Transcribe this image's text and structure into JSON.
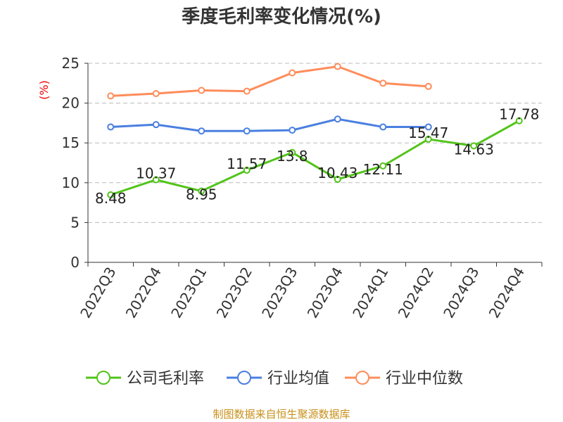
{
  "chart_data": {
    "type": "line",
    "title": "季度毛利率变化情况(%)",
    "ylabel": "(%)",
    "xlabel": "",
    "ylim": [
      0,
      25
    ],
    "yticks": [
      0,
      5,
      10,
      15,
      20,
      25
    ],
    "grid": true,
    "legend_position": "bottom",
    "categories": [
      "2022Q3",
      "2022Q4",
      "2023Q1",
      "2023Q2",
      "2023Q3",
      "2023Q4",
      "2024Q1",
      "2024Q2",
      "2024Q3",
      "2024Q4"
    ],
    "series": [
      {
        "name": "公司毛利率",
        "color": "#52c41a",
        "values": [
          8.48,
          10.37,
          8.95,
          11.57,
          13.8,
          10.43,
          12.11,
          15.47,
          14.63,
          17.78
        ],
        "labels": [
          "8.48",
          "10.37",
          "8.95",
          "11.57",
          "13.8",
          "10.43",
          "12.11",
          "15.47",
          "14.63",
          "17.78"
        ]
      },
      {
        "name": "行业均值",
        "color": "#4a7fe0",
        "values": [
          17.0,
          17.3,
          16.5,
          16.5,
          16.6,
          18.0,
          17.0,
          17.0,
          null,
          null
        ]
      },
      {
        "name": "行业中位数",
        "color": "#ff8c5a",
        "values": [
          20.9,
          21.2,
          21.6,
          21.5,
          23.8,
          24.6,
          22.5,
          22.1,
          null,
          null
        ]
      }
    ]
  },
  "source": "制图数据来自恒生聚源数据库"
}
